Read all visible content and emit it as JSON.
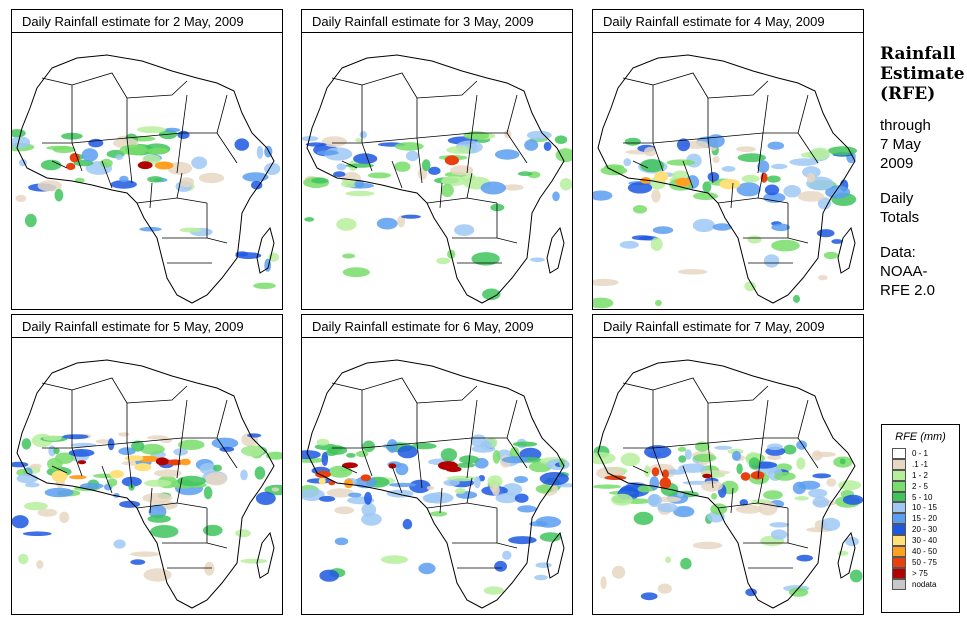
{
  "panels": [
    {
      "title": "Daily Rainfall estimate for  2 May, 2009",
      "date": "2 May, 2009"
    },
    {
      "title": "Daily Rainfall estimate for  3 May, 2009",
      "date": "3 May, 2009"
    },
    {
      "title": "Daily Rainfall estimate for  4 May, 2009",
      "date": "4 May, 2009"
    },
    {
      "title": "Daily Rainfall estimate for  5 May, 2009",
      "date": "5 May, 2009"
    },
    {
      "title": "Daily Rainfall estimate for  6 May, 2009",
      "date": "6 May, 2009"
    },
    {
      "title": "Daily Rainfall estimate for  7 May, 2009",
      "date": "7 May, 2009"
    }
  ],
  "side": {
    "title_line1": "Rainfall",
    "title_line2": "Estimate",
    "title_line3": "(RFE)",
    "through_label": "through",
    "through_date_1": "7 May",
    "through_date_2": "2009",
    "totals_1": "Daily",
    "totals_2": "Totals",
    "data_label": "Data:",
    "data_source_1": "NOAA-",
    "data_source_2": "RFE 2.0"
  },
  "legend": {
    "title": "RFE (mm)",
    "items": [
      {
        "label": "0 - 1",
        "color": "#ffffff"
      },
      {
        "label": ".1 -1",
        "color": "#e8d7c2"
      },
      {
        "label": "1 - 2",
        "color": "#b6ee9c"
      },
      {
        "label": "2 - 5",
        "color": "#78dd6a"
      },
      {
        "label": "5 - 10",
        "color": "#3fc45c"
      },
      {
        "label": "10 - 15",
        "color": "#9fc8f4"
      },
      {
        "label": "15 - 20",
        "color": "#5a9ef0"
      },
      {
        "label": "20 - 30",
        "color": "#1d58e2"
      },
      {
        "label": "30 - 40",
        "color": "#ffe07a"
      },
      {
        "label": "40 - 50",
        "color": "#ffa022"
      },
      {
        "label": "50 - 75",
        "color": "#e8400f"
      },
      {
        "label": "> 75",
        "color": "#b30000"
      },
      {
        "label": "nodata",
        "color": "#c8c8c8"
      }
    ]
  }
}
